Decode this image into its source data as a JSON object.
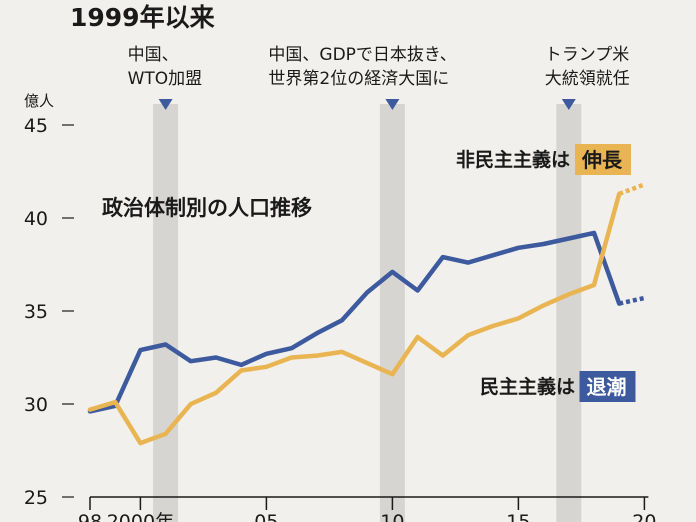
{
  "chart_data": {
    "type": "line",
    "title": "1999年以来",
    "subtitle": "政治体制別の人口推移",
    "ylabel": "億人",
    "ylim": [
      25,
      46
    ],
    "xlim": [
      1998,
      2020.5
    ],
    "yticks": [
      25,
      30,
      35,
      40,
      45
    ],
    "xticks": [
      {
        "value": 1998,
        "label": "98"
      },
      {
        "value": 2000,
        "label": "2000年"
      },
      {
        "value": 2005,
        "label": "05"
      },
      {
        "value": 2010,
        "label": "10"
      },
      {
        "value": 2015,
        "label": "15"
      },
      {
        "value": 2020,
        "label": "20"
      }
    ],
    "grid": false,
    "events": [
      {
        "x": 2001,
        "lines": [
          "中国、",
          "WTO加盟"
        ]
      },
      {
        "x": 2010,
        "lines": [
          "中国、GDPで日本抜き、",
          "世界第2位の経済大国に"
        ]
      },
      {
        "x": 2017,
        "lines": [
          "トランプ米",
          "大統領就任"
        ]
      }
    ],
    "series": [
      {
        "name": "民主主義は退潮",
        "label_prefix": "民主主義は",
        "label_highlight": "退潮",
        "color": "#3d5a9e",
        "label_bg": "#3d5a9e",
        "label_fg": "#ffffff",
        "x": [
          1998,
          1999,
          2000,
          2001,
          2002,
          2003,
          2004,
          2005,
          2006,
          2007,
          2008,
          2009,
          2010,
          2011,
          2012,
          2013,
          2014,
          2015,
          2016,
          2017,
          2018,
          2019
        ],
        "values": [
          29.6,
          29.9,
          32.9,
          33.2,
          32.3,
          32.5,
          32.1,
          32.7,
          33.0,
          33.8,
          34.5,
          36.0,
          37.1,
          36.1,
          37.9,
          37.6,
          38.0,
          38.4,
          38.6,
          38.9,
          39.2,
          35.4
        ],
        "projection": {
          "x": [
            2019,
            2020
          ],
          "values": [
            35.4,
            35.7
          ]
        }
      },
      {
        "name": "非民主主義は伸長",
        "label_prefix": "非民主主義は",
        "label_highlight": "伸長",
        "color": "#e9b552",
        "label_bg": "#e9b552",
        "label_fg": "#1a1a1a",
        "x": [
          1998,
          1999,
          2000,
          2001,
          2002,
          2003,
          2004,
          2005,
          2006,
          2007,
          2008,
          2009,
          2010,
          2011,
          2012,
          2013,
          2014,
          2015,
          2016,
          2017,
          2018,
          2019
        ],
        "values": [
          29.7,
          30.1,
          27.9,
          28.4,
          30.0,
          30.6,
          31.8,
          32.0,
          32.5,
          32.6,
          32.8,
          32.2,
          31.6,
          33.6,
          32.6,
          33.7,
          34.2,
          34.6,
          35.3,
          35.9,
          36.4,
          41.3
        ],
        "projection": {
          "x": [
            2019,
            2020
          ],
          "values": [
            41.3,
            41.8
          ]
        }
      }
    ]
  }
}
